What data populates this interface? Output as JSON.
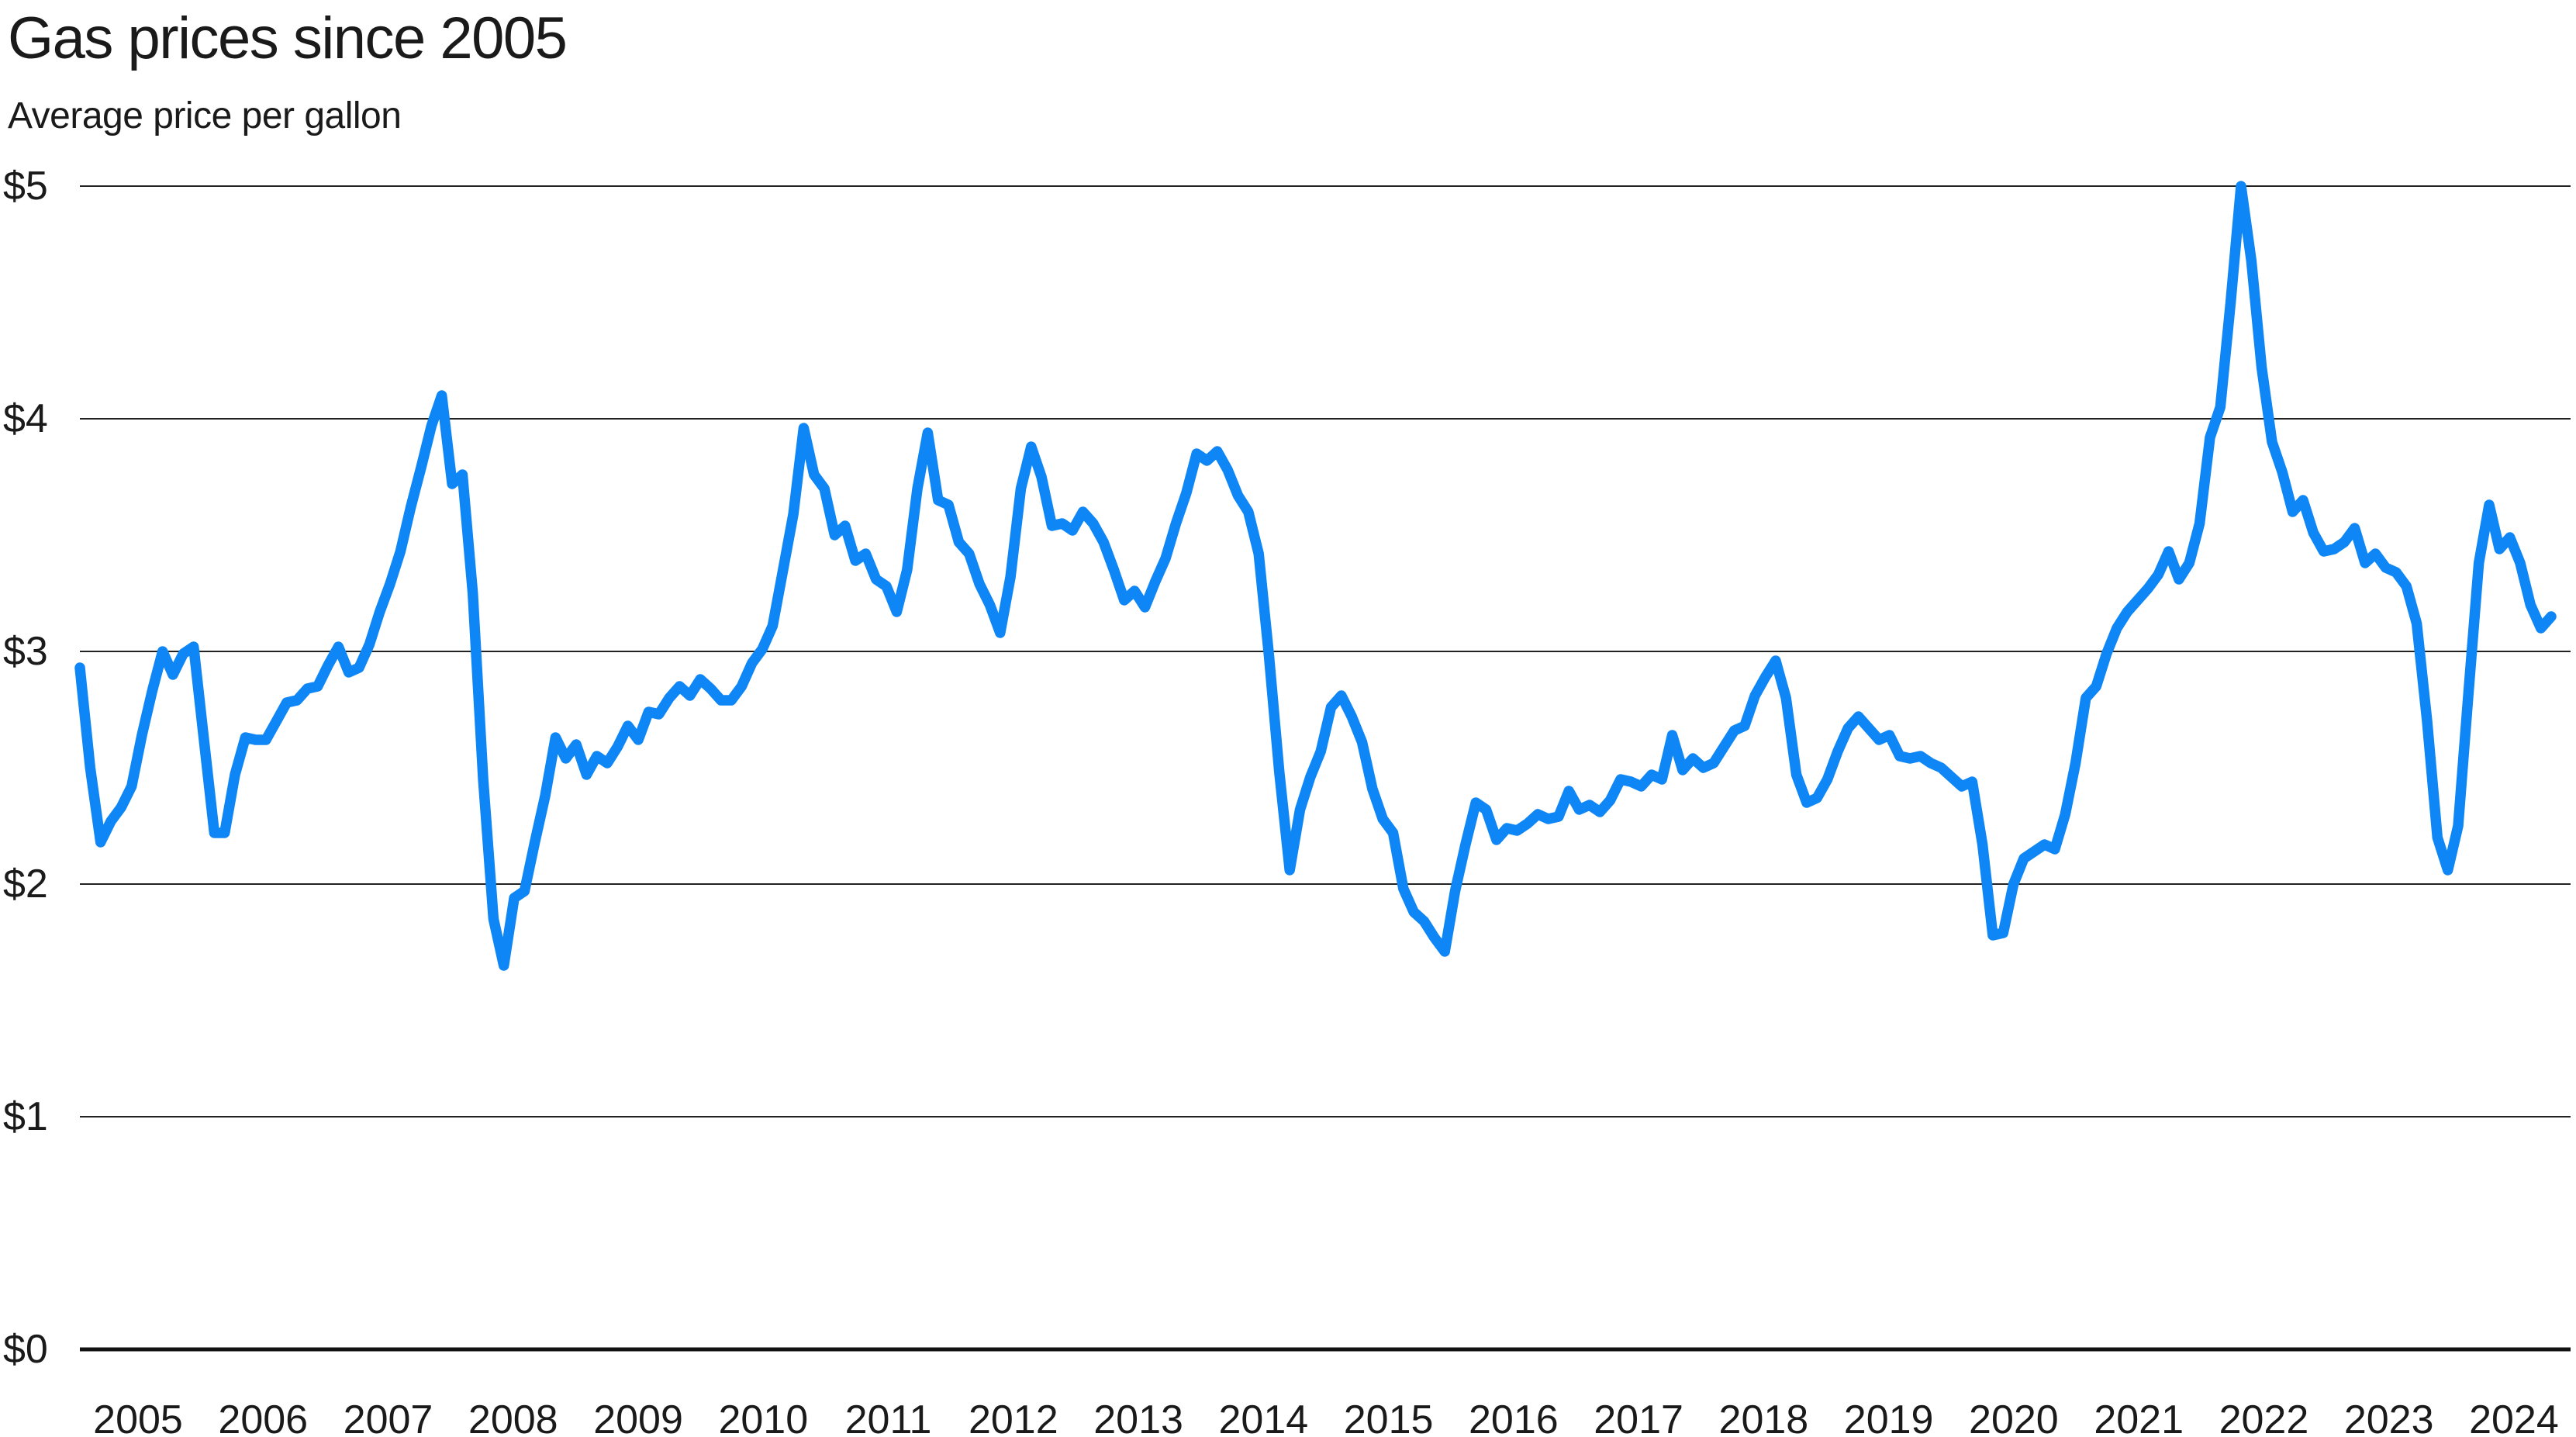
{
  "page": {
    "title": "Gas prices since 2005",
    "subtitle": "Average price per gallon"
  },
  "chart_data": {
    "type": "line",
    "title": "Gas prices since 2005",
    "subtitle": "Average price per gallon",
    "xlabel": "",
    "ylabel": "Average price per gallon",
    "unit": "$ per gallon",
    "ylim": [
      0,
      5
    ],
    "grid": true,
    "legend": "none",
    "y_ticks": [
      {
        "label": "$5",
        "value": 5
      },
      {
        "label": "$4",
        "value": 4
      },
      {
        "label": "$3",
        "value": 3
      },
      {
        "label": "$2",
        "value": 2
      },
      {
        "label": "$1",
        "value": 1
      },
      {
        "label": "$0",
        "value": 0
      }
    ],
    "x_tick_labels": [
      "2005",
      "2006",
      "2007",
      "2008",
      "2009",
      "2010",
      "2011",
      "2012",
      "2013",
      "2014",
      "2015",
      "2016",
      "2017",
      "2018",
      "2019",
      "2020",
      "2021",
      "2022",
      "2023",
      "2024"
    ],
    "colors": {
      "line": "#0E86F6",
      "grid": "#222222",
      "axis": "#111111",
      "text": "#1a1a1a",
      "background": "#ffffff"
    },
    "series": [
      {
        "name": "Average price per gallon",
        "color": "#0E86F6",
        "start_year": 2005,
        "frequency": "monthly",
        "values": [
          2.93,
          2.5,
          2.18,
          2.27,
          2.33,
          2.42,
          2.64,
          2.83,
          3.0,
          2.9,
          2.99,
          3.02,
          2.62,
          2.22,
          2.22,
          2.47,
          2.63,
          2.62,
          2.62,
          2.7,
          2.78,
          2.79,
          2.84,
          2.85,
          2.94,
          3.02,
          2.91,
          2.93,
          3.03,
          3.17,
          3.29,
          3.43,
          3.62,
          3.79,
          3.97,
          4.1,
          3.72,
          3.76,
          3.25,
          2.45,
          1.85,
          1.65,
          1.94,
          1.97,
          2.18,
          2.38,
          2.63,
          2.54,
          2.6,
          2.47,
          2.55,
          2.52,
          2.59,
          2.68,
          2.62,
          2.74,
          2.73,
          2.8,
          2.85,
          2.81,
          2.88,
          2.84,
          2.79,
          2.79,
          2.85,
          2.95,
          3.01,
          3.11,
          3.35,
          3.59,
          3.96,
          3.76,
          3.7,
          3.5,
          3.54,
          3.39,
          3.42,
          3.31,
          3.28,
          3.17,
          3.35,
          3.7,
          3.94,
          3.65,
          3.63,
          3.47,
          3.42,
          3.29,
          3.2,
          3.08,
          3.32,
          3.7,
          3.88,
          3.75,
          3.54,
          3.55,
          3.52,
          3.6,
          3.55,
          3.47,
          3.35,
          3.22,
          3.26,
          3.19,
          3.3,
          3.4,
          3.55,
          3.68,
          3.85,
          3.82,
          3.86,
          3.78,
          3.67,
          3.6,
          3.42,
          2.98,
          2.48,
          2.06,
          2.32,
          2.46,
          2.57,
          2.76,
          2.81,
          2.72,
          2.61,
          2.41,
          2.28,
          2.22,
          1.98,
          1.88,
          1.84,
          1.77,
          1.71,
          1.97,
          2.17,
          2.35,
          2.32,
          2.19,
          2.24,
          2.23,
          2.26,
          2.3,
          2.28,
          2.29,
          2.4,
          2.32,
          2.34,
          2.31,
          2.36,
          2.45,
          2.44,
          2.42,
          2.47,
          2.45,
          2.64,
          2.49,
          2.54,
          2.5,
          2.52,
          2.59,
          2.66,
          2.68,
          2.81,
          2.89,
          2.96,
          2.8,
          2.47,
          2.35,
          2.37,
          2.45,
          2.57,
          2.67,
          2.72,
          2.67,
          2.62,
          2.64,
          2.55,
          2.54,
          2.55,
          2.52,
          2.5,
          2.46,
          2.42,
          2.44,
          2.17,
          1.78,
          1.79,
          2.0,
          2.11,
          2.14,
          2.17,
          2.15,
          2.3,
          2.52,
          2.8,
          2.85,
          2.99,
          3.1,
          3.17,
          3.22,
          3.27,
          3.33,
          3.43,
          3.31,
          3.38,
          3.55,
          3.92,
          4.05,
          4.5,
          5.0,
          4.68,
          4.22,
          3.9,
          3.77,
          3.6,
          3.65,
          3.51,
          3.43,
          3.44,
          3.47,
          3.53,
          3.38,
          3.42,
          3.36,
          3.34,
          3.28,
          3.12,
          2.7,
          2.2,
          2.06,
          2.25,
          2.82,
          3.38,
          3.63,
          3.44,
          3.49,
          3.38,
          3.2,
          3.1,
          3.15
        ]
      }
    ]
  }
}
